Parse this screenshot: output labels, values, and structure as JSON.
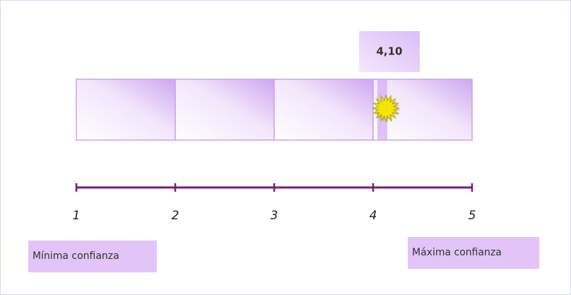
{
  "chart_data": {
    "type": "scale",
    "value": 4.1,
    "value_label": "4,10",
    "xlim": [
      1,
      5
    ],
    "xticks": [
      1,
      2,
      3,
      4,
      5
    ],
    "min_label": "Mínima confianza",
    "max_label": "Máxima confianza",
    "color": "#d2aaf2",
    "axis_color": "#7a1a7a",
    "marker_color": "#f2e600"
  }
}
